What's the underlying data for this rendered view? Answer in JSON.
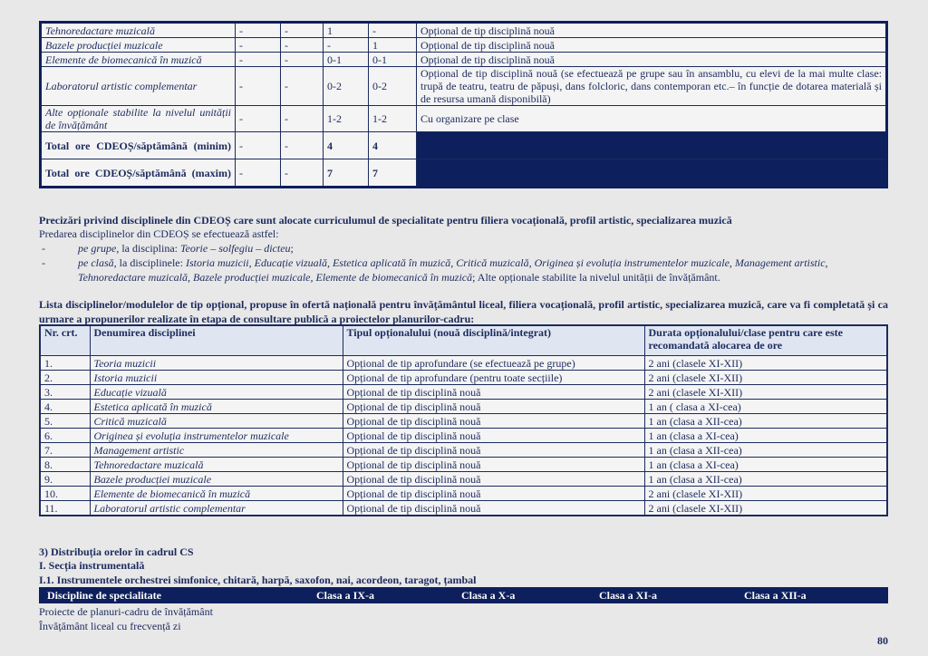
{
  "cdeos_table": {
    "rows": [
      {
        "name": "Tehnoredactare muzicală",
        "c1": "-",
        "c2": "-",
        "c3": "1",
        "c4": "-",
        "note": "Opțional de tip disciplină nouă"
      },
      {
        "name": "Bazele producției muzicale",
        "c1": "-",
        "c2": "-",
        "c3": "-",
        "c4": "1",
        "note": "Opțional de tip disciplină nouă"
      },
      {
        "name": "Elemente de biomecanică în muzică",
        "c1": "-",
        "c2": "-",
        "c3": "0-1",
        "c4": "0-1",
        "note": "Opțional de tip disciplină nouă"
      },
      {
        "name": "Laboratorul artistic complementar",
        "c1": "-",
        "c2": "-",
        "c3": "0-2",
        "c4": "0-2",
        "note": "Opțional de tip disciplină nouă (se efectuează pe grupe sau în ansamblu, cu elevi de la mai multe clase: trupă de teatru, teatru de păpuși, dans folcloric, dans contemporan etc.– în funcție de dotarea materială și de resursa umană disponibilă)"
      },
      {
        "name": "Alte opționale stabilite la nivelul unității de învățământ",
        "c1": "-",
        "c2": "-",
        "c3": "1-2",
        "c4": "1-2",
        "note": "Cu organizare pe clase"
      }
    ],
    "totals": [
      {
        "name": "Total ore CDEOȘ/săptămână (minim)",
        "c1": "-",
        "c2": "-",
        "c3": "4",
        "c4": "4"
      },
      {
        "name": "Total ore CDEOȘ/săptămână (maxim)",
        "c1": "-",
        "c2": "-",
        "c3": "7",
        "c4": "7"
      }
    ]
  },
  "precizari": {
    "heading": "Precizări privind disciplinele din CDEOȘ care sunt alocate curriculumul de specialitate pentru filiera vocațională, profil artistic, specializarea muzică",
    "intro": "Predarea disciplinelor din CDEOȘ se efectuează astfel:",
    "bullet_dash": "-",
    "b1_em": "pe grupe",
    "b1_text": ", la disciplina: ",
    "b1_em2": "Teorie – solfegiu – dicteu",
    "b1_end": ";",
    "b2_em": "pe clasă",
    "b2_text": ", la disciplinele: ",
    "b2_em2": "Istoria muzicii, Educație vizuală, Estetica aplicată în muzică, Critică muzicală, Originea și evoluția instrumentelor muzicale, Management artistic, Tehnoredactare muzicală, Bazele producției muzicale, Elemente de biomecanică în muzică",
    "b2_end": "; Alte opționale stabilite la nivelul unității de învățământ."
  },
  "lista": {
    "heading": "Lista disciplinelor/modulelor de tip opțional, propuse în ofertă națională pentru învățământul liceal, filiera vocațională, profil artistic, specializarea muzică, care va fi completată și ca urmare a propunerilor realizate în etapa de consultare publică a proiectelor planurilor-cadru:",
    "headers": [
      "Nr. crt.",
      "Denumirea disciplinei",
      "Tipul opționalului (nouă disciplină/integrat)",
      "Durata opționalului/clase pentru care este recomandată alocarea de ore"
    ],
    "rows": [
      [
        "1.",
        "Teoria muzicii",
        "Opțional de tip aprofundare (se efectuează pe grupe)",
        "2 ani (clasele XI-XII)"
      ],
      [
        "2.",
        "Istoria muzicii",
        "Opțional de tip aprofundare (pentru toate secțiile)",
        "2 ani (clasele XI-XII)"
      ],
      [
        "3.",
        "Educație vizuală",
        "Opțional de tip disciplină nouă",
        "2 ani (clasele XI-XII)"
      ],
      [
        "4.",
        "Estetica aplicată în muzică",
        "Opțional de tip disciplină nouă",
        "1 an ( clasa a XI-cea)"
      ],
      [
        "5.",
        "Critică muzicală",
        "Opțional de tip disciplină nouă",
        "1 an (clasa a XII-cea)"
      ],
      [
        "6.",
        "Originea și evoluția instrumentelor muzicale",
        "Opțional de tip disciplină nouă",
        "1 an (clasa a XI-cea)"
      ],
      [
        "7.",
        "Management artistic",
        "Opțional de tip disciplină nouă",
        "1 an (clasa a XII-cea)"
      ],
      [
        "8.",
        "Tehnoredactare muzicală",
        "Opțional de tip disciplină nouă",
        "1 an (clasa a XI-cea)"
      ],
      [
        "9.",
        "Bazele producției muzicale",
        "Opțional de tip disciplină nouă",
        "1 an (clasa a XII-cea)"
      ],
      [
        "10.",
        "Elemente de biomecanică în muzică",
        "Opțional de tip disciplină nouă",
        "2 ani (clasele XI-XII)"
      ],
      [
        "11.",
        "Laboratorul artistic complementar",
        "Opțional de tip disciplină nouă",
        "2 ani (clasele XI-XII)"
      ]
    ]
  },
  "distributie": {
    "h1": "3) Distribuția orelor în cadrul CS",
    "h2": "I. Secția instrumentală",
    "h3": "I.1. Instrumentele orchestrei simfonice, chitară, harpă, saxofon, nai, acordeon, taragot, țambal",
    "headers": [
      "Discipline de specialitate",
      "Clasa a IX-a",
      "Clasa a X-a",
      "Clasa a XI-a",
      "Clasa a XII-a"
    ]
  },
  "footer": {
    "line1": "Proiecte de planuri-cadru de învățământ",
    "line2": "Învățământ liceal cu frecvență zi",
    "page_number": "80"
  },
  "colors": {
    "navy": "#0d1f5c",
    "text": "#1c2b5e",
    "page": "#e8e8e8",
    "header_fill": "#dfe6f2"
  }
}
